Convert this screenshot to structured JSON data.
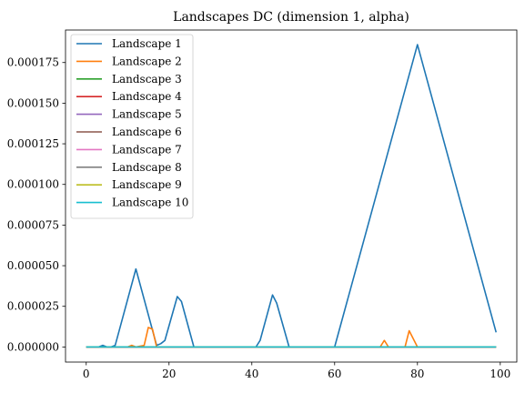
{
  "chart_data": {
    "type": "line",
    "title": "Landscapes DC (dimension 1, alpha)",
    "xlabel": "",
    "ylabel": "",
    "xlim": [
      -5,
      104
    ],
    "ylim": [
      -9.3e-06,
      0.000195
    ],
    "xticks": [
      0,
      20,
      40,
      60,
      80,
      100
    ],
    "xtick_labels": [
      "0",
      "20",
      "40",
      "60",
      "80",
      "100"
    ],
    "yticks": [
      0,
      2.5e-05,
      5e-05,
      7.5e-05,
      0.0001,
      0.000125,
      0.00015,
      0.000175
    ],
    "ytick_labels": [
      "0.000000",
      "0.000025",
      "0.000050",
      "0.000075",
      "0.000100",
      "0.000125",
      "0.000150",
      "0.000175"
    ],
    "grid": false,
    "legend_position": "upper-left",
    "series": [
      {
        "name": "Landscape 1",
        "color": "#1f77b4",
        "points": [
          [
            0,
            0
          ],
          [
            3,
            0
          ],
          [
            4,
            1e-06
          ],
          [
            5,
            0
          ],
          [
            6,
            0
          ],
          [
            7,
            1e-06
          ],
          [
            12,
            4.8e-05
          ],
          [
            17,
            1e-06
          ],
          [
            18,
            2e-06
          ],
          [
            19,
            4e-06
          ],
          [
            22,
            3.1e-05
          ],
          [
            23,
            2.8e-05
          ],
          [
            26,
            0
          ],
          [
            41,
            0
          ],
          [
            42,
            4e-06
          ],
          [
            45,
            3.2e-05
          ],
          [
            46,
            2.7e-05
          ],
          [
            49,
            0
          ],
          [
            60,
            0
          ],
          [
            80,
            0.000186
          ],
          [
            99,
            9e-06
          ]
        ]
      },
      {
        "name": "Landscape 2",
        "color": "#ff7f0e",
        "points": [
          [
            0,
            0
          ],
          [
            10,
            0
          ],
          [
            11,
            1e-06
          ],
          [
            12,
            0
          ],
          [
            14,
            1e-06
          ],
          [
            15,
            1.2e-05
          ],
          [
            16,
            1.1e-05
          ],
          [
            17,
            0
          ],
          [
            71,
            0
          ],
          [
            72,
            4e-06
          ],
          [
            73,
            0
          ],
          [
            77,
            0
          ],
          [
            78,
            1e-05
          ],
          [
            80,
            0
          ],
          [
            99,
            0
          ]
        ]
      },
      {
        "name": "Landscape 3",
        "color": "#2ca02c",
        "points": [
          [
            0,
            0
          ],
          [
            99,
            0
          ]
        ]
      },
      {
        "name": "Landscape 4",
        "color": "#d62728",
        "points": [
          [
            0,
            0
          ],
          [
            99,
            0
          ]
        ]
      },
      {
        "name": "Landscape 5",
        "color": "#9467bd",
        "points": [
          [
            0,
            0
          ],
          [
            99,
            0
          ]
        ]
      },
      {
        "name": "Landscape 6",
        "color": "#8c564b",
        "points": [
          [
            0,
            0
          ],
          [
            99,
            0
          ]
        ]
      },
      {
        "name": "Landscape 7",
        "color": "#e377c2",
        "points": [
          [
            0,
            0
          ],
          [
            99,
            0
          ]
        ]
      },
      {
        "name": "Landscape 8",
        "color": "#7f7f7f",
        "points": [
          [
            0,
            0
          ],
          [
            99,
            0
          ]
        ]
      },
      {
        "name": "Landscape 9",
        "color": "#bcbd22",
        "points": [
          [
            0,
            0
          ],
          [
            99,
            0
          ]
        ]
      },
      {
        "name": "Landscape 10",
        "color": "#17becf",
        "points": [
          [
            0,
            0
          ],
          [
            99,
            0
          ]
        ]
      }
    ]
  }
}
